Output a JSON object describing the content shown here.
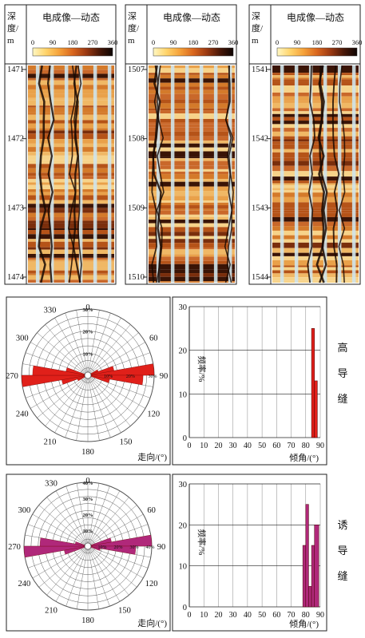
{
  "colors": {
    "scale": [
      "#fff7c2",
      "#ffd36a",
      "#f5a13a",
      "#d9661e",
      "#9c3a12",
      "#4a1808",
      "#0d0402"
    ],
    "high_rose": "#e0201a",
    "high_hist": "#e0201a",
    "induced_rose": "#b0287a",
    "induced_hist": "#b0287a"
  },
  "logs": [
    {
      "header_depth": "深度/m",
      "header_title": "电成像—动态",
      "scale_ticks": [
        "0",
        "90",
        "180",
        "270",
        "360"
      ],
      "depths": [
        "1471",
        "1472",
        "1473",
        "1474"
      ]
    },
    {
      "header_depth": "深度/m",
      "header_title": "电成像—动态",
      "scale_ticks": [
        "0",
        "90",
        "180",
        "270",
        "360"
      ],
      "depths": [
        "1507",
        "1508",
        "1509",
        "1510"
      ]
    },
    {
      "header_depth": "深度/m",
      "header_title": "电成像—动态",
      "scale_ticks": [
        "0",
        "90",
        "180",
        "270",
        "360"
      ],
      "depths": [
        "1541",
        "1542",
        "1543",
        "1544"
      ]
    }
  ],
  "rose_labels": {
    "angles": [
      "0",
      "60",
      "90",
      "120",
      "150",
      "180",
      "210",
      "240",
      "270",
      "300",
      "330"
    ],
    "axis_title": "走向/(°)"
  },
  "hist_labels": {
    "x_ticks": [
      "0",
      "10",
      "20",
      "30",
      "40",
      "50",
      "60",
      "70",
      "80",
      "90"
    ],
    "y_title": "频率/%",
    "x_title": "倾角/(°)"
  },
  "panels": [
    {
      "side_label": [
        "高",
        "导",
        "缝"
      ],
      "rose_radial": [
        "30%",
        "20%",
        "10%"
      ],
      "rose_ray_labels": [
        "10%",
        "20%",
        "30%"
      ],
      "rose_petals": [
        {
          "strike": 85,
          "pct": 30
        },
        {
          "strike": 95,
          "pct": 25
        },
        {
          "strike": 75,
          "pct": 12
        },
        {
          "strike": 105,
          "pct": 10
        },
        {
          "strike": 65,
          "pct": 5
        },
        {
          "strike": 265,
          "pct": 30
        },
        {
          "strike": 275,
          "pct": 25
        },
        {
          "strike": 255,
          "pct": 12
        },
        {
          "strike": 285,
          "pct": 10
        },
        {
          "strike": 245,
          "pct": 5
        }
      ],
      "hist_y_ticks": [
        "0",
        "10",
        "20",
        "30"
      ],
      "hist_ylim": [
        0,
        30
      ],
      "hist_bars": [
        {
          "from": 84,
          "to": 86,
          "value": 25
        },
        {
          "from": 86,
          "to": 88,
          "value": 13
        }
      ]
    },
    {
      "side_label": [
        "诱",
        "导",
        "缝"
      ],
      "rose_radial": [
        "40%",
        "30%",
        "20%",
        "10%"
      ],
      "rose_ray_labels": [
        "10%",
        "20%",
        "30%",
        "40%"
      ],
      "rose_petals": [
        {
          "strike": 85,
          "pct": 40
        },
        {
          "strike": 95,
          "pct": 30
        },
        {
          "strike": 75,
          "pct": 15
        },
        {
          "strike": 105,
          "pct": 8
        },
        {
          "strike": 265,
          "pct": 40
        },
        {
          "strike": 275,
          "pct": 30
        },
        {
          "strike": 255,
          "pct": 15
        },
        {
          "strike": 285,
          "pct": 8
        }
      ],
      "hist_y_ticks": [
        "0",
        "10",
        "20",
        "30"
      ],
      "hist_ylim": [
        0,
        30
      ],
      "hist_bars": [
        {
          "from": 78,
          "to": 80,
          "value": 15
        },
        {
          "from": 80,
          "to": 82,
          "value": 25
        },
        {
          "from": 82,
          "to": 84,
          "value": 5
        },
        {
          "from": 84,
          "to": 86,
          "value": 15
        },
        {
          "from": 86,
          "to": 89,
          "value": 20
        }
      ]
    }
  ]
}
